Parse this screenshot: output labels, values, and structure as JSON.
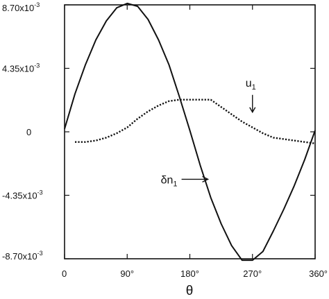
{
  "chart_data": {
    "type": "line",
    "title": "",
    "xlabel": "θ",
    "ylabel": "",
    "xlim": [
      0,
      360
    ],
    "ylim": [
      -0.0087,
      0.0087
    ],
    "grid": false,
    "legend": "none",
    "x_ticks": [
      {
        "value": 0,
        "label": "0"
      },
      {
        "value": 90,
        "label": "90°"
      },
      {
        "value": 180,
        "label": "180°"
      },
      {
        "value": 270,
        "label": "270°"
      },
      {
        "value": 360,
        "label": "360°"
      }
    ],
    "y_ticks": [
      {
        "value": 0.0087,
        "mantissa": "8.70x10",
        "exponent": "-3"
      },
      {
        "value": 0.00435,
        "mantissa": "4.35x10",
        "exponent": "-3"
      },
      {
        "value": 0,
        "mantissa": "0",
        "exponent": ""
      },
      {
        "value": -0.00435,
        "mantissa": "-4.35x10",
        "exponent": "-3"
      },
      {
        "value": -0.0087,
        "mantissa": "-8.70x10",
        "exponent": "-3"
      }
    ],
    "series": [
      {
        "style": "solid",
        "color": "#111111",
        "x": [
          0,
          15,
          30,
          45,
          60,
          75,
          90,
          105,
          120,
          135,
          150,
          165,
          180,
          195,
          210,
          225,
          240,
          255,
          270,
          285,
          300,
          315,
          330,
          345,
          360
        ],
        "y": [
          0.0002,
          0.0026,
          0.0046,
          0.0063,
          0.0076,
          0.0085,
          0.0088,
          0.0086,
          0.0077,
          0.0063,
          0.0046,
          0.0024,
          0.0001,
          -0.0023,
          -0.0045,
          -0.0063,
          -0.0078,
          -0.0088,
          -0.0088,
          -0.0082,
          -0.0068,
          -0.0053,
          -0.0037,
          -0.0019,
          0.0001
        ]
      },
      {
        "style": "dotted",
        "color": "#111111",
        "x": [
          15,
          30,
          45,
          60,
          75,
          90,
          105,
          120,
          135,
          150,
          165,
          180,
          195,
          210,
          225,
          240,
          255,
          270,
          285,
          300,
          315,
          330,
          345,
          360
        ],
        "y": [
          -0.0007,
          -0.0007,
          -0.0006,
          -0.0004,
          -0.0001,
          0.0003,
          0.0009,
          0.0014,
          0.0018,
          0.0021,
          0.0022,
          0.0022,
          0.0022,
          0.0022,
          0.0017,
          0.0012,
          0.0007,
          0.0003,
          -0.0001,
          -0.0004,
          -0.0005,
          -0.0006,
          -0.0007,
          -0.0008
        ]
      }
    ],
    "annotations": [
      {
        "name": "annotation-u1",
        "text": "u",
        "subscript": "1",
        "target_x": 270,
        "target_y": 0.0012
      },
      {
        "name": "annotation-dn1",
        "text": "δn",
        "subscript": "1",
        "target_x": 208,
        "target_y": -0.0033
      }
    ]
  }
}
